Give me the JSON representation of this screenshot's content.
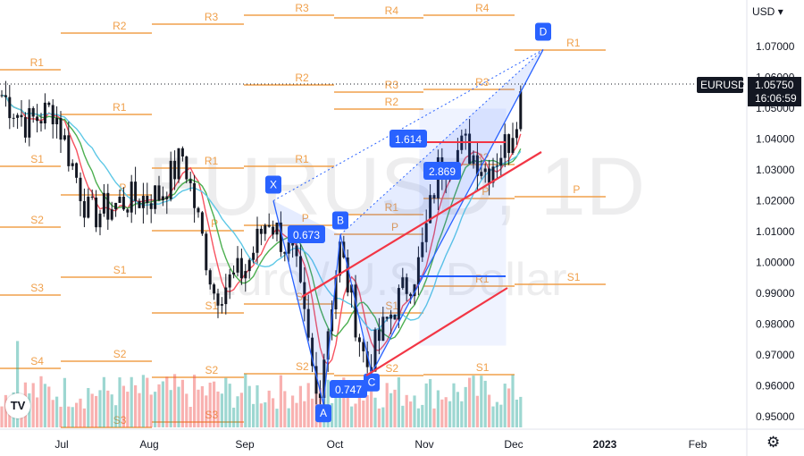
{
  "watermark": {
    "symbol": "EURUSD, 1D",
    "name": "Euro / U.S. Dollar"
  },
  "price_axis": {
    "currency": "USD",
    "ticks": [
      "1.07000",
      "1.06000",
      "1.05000",
      "1.04000",
      "1.03000",
      "1.02000",
      "1.01000",
      "1.00000",
      "0.99000",
      "0.98000",
      "0.97000",
      "0.96000",
      "0.95000"
    ]
  },
  "time_axis": {
    "labels": [
      "Jul",
      "Aug",
      "Sep",
      "Oct",
      "Nov",
      "Dec",
      "2023",
      "Feb"
    ]
  },
  "last_price": {
    "symbol": "EURUSD",
    "price": "1.05750",
    "countdown": "16:06:59"
  },
  "pivot_labels": [
    "R1",
    "R2",
    "R3",
    "R4",
    "S1",
    "S2",
    "S3",
    "S4",
    "P"
  ],
  "pattern": {
    "points": [
      "X",
      "A",
      "B",
      "C",
      "D"
    ],
    "ratios": [
      "0.673",
      "0.747",
      "1.614",
      "2.869"
    ]
  },
  "colors": {
    "up": "#26a69a",
    "down": "#ef5350",
    "pivot": "#f0a04b",
    "pattern": "#2962ff",
    "channel": "#f23645",
    "ma_fast": "#f7525f",
    "ma_mid": "#4caf50",
    "ma_slow": "#5ec8e6"
  },
  "chart_data": {
    "type": "candlestick",
    "symbol": "EURUSD",
    "timeframe": "1D",
    "y_range": [
      0.945,
      1.08
    ],
    "x_labels": [
      "Jul",
      "Aug",
      "Sep",
      "Oct",
      "Nov",
      "Dec",
      "2023",
      "Feb"
    ],
    "pattern_points": {
      "X": 1.02,
      "A": 0.954,
      "B": 1.009,
      "C": 0.964,
      "D": 1.069
    },
    "last_close": 1.0575
  }
}
